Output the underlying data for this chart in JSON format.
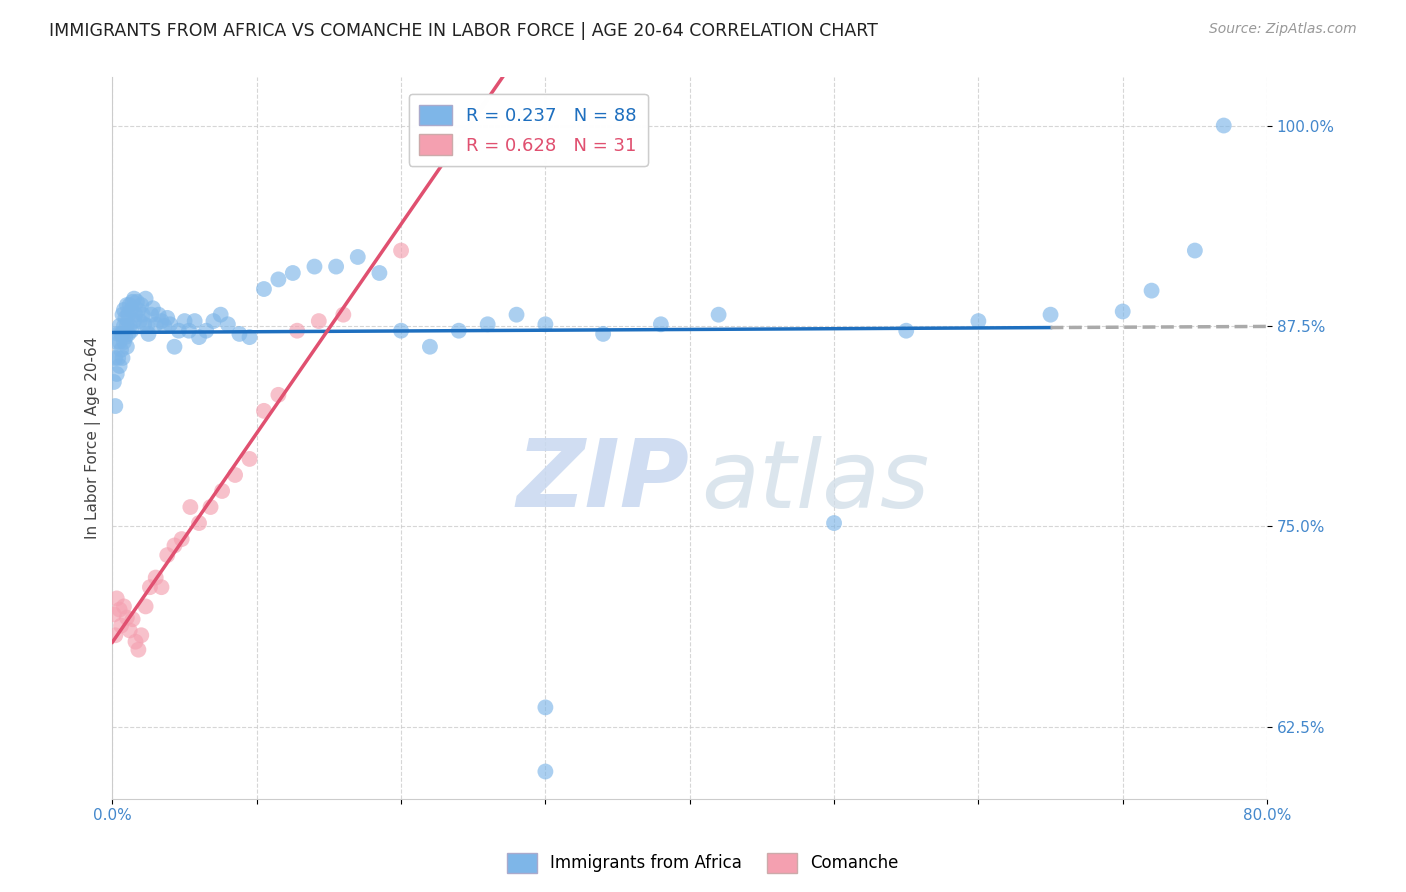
{
  "title": "IMMIGRANTS FROM AFRICA VS COMANCHE IN LABOR FORCE | AGE 20-64 CORRELATION CHART",
  "source": "Source: ZipAtlas.com",
  "ylabel": "In Labor Force | Age 20-64",
  "xlim": [
    0.0,
    0.8
  ],
  "ylim": [
    0.58,
    1.03
  ],
  "yticks": [
    0.625,
    0.75,
    0.875,
    1.0
  ],
  "ytick_labels": [
    "62.5%",
    "75.0%",
    "87.5%",
    "100.0%"
  ],
  "xtick_positions": [
    0.0,
    0.1,
    0.2,
    0.3,
    0.4,
    0.5,
    0.6,
    0.7,
    0.8
  ],
  "xtick_labels": [
    "0.0%",
    "",
    "",
    "",
    "",
    "",
    "",
    "",
    "80.0%"
  ],
  "africa_R": 0.237,
  "africa_N": 88,
  "comanche_R": 0.628,
  "comanche_N": 31,
  "africa_color": "#7EB6E8",
  "comanche_color": "#F4A0B0",
  "africa_line_color": "#1E6FBF",
  "comanche_line_color": "#E05070",
  "dash_color": "#AAAAAA",
  "tick_label_color": "#4488CC",
  "background_color": "#FFFFFF",
  "watermark_zip": "ZIP",
  "watermark_atlas": "atlas",
  "africa_x": [
    0.001,
    0.002,
    0.002,
    0.003,
    0.003,
    0.004,
    0.004,
    0.005,
    0.005,
    0.005,
    0.006,
    0.006,
    0.007,
    0.007,
    0.007,
    0.008,
    0.008,
    0.008,
    0.009,
    0.009,
    0.01,
    0.01,
    0.01,
    0.011,
    0.011,
    0.012,
    0.012,
    0.013,
    0.013,
    0.014,
    0.015,
    0.015,
    0.016,
    0.017,
    0.018,
    0.019,
    0.02,
    0.021,
    0.022,
    0.023,
    0.024,
    0.025,
    0.027,
    0.028,
    0.03,
    0.032,
    0.034,
    0.036,
    0.038,
    0.04,
    0.043,
    0.046,
    0.05,
    0.053,
    0.057,
    0.06,
    0.065,
    0.07,
    0.075,
    0.08,
    0.088,
    0.095,
    0.105,
    0.115,
    0.125,
    0.14,
    0.155,
    0.17,
    0.185,
    0.2,
    0.22,
    0.24,
    0.26,
    0.28,
    0.3,
    0.34,
    0.38,
    0.42,
    0.3,
    0.3,
    0.5,
    0.55,
    0.6,
    0.65,
    0.7,
    0.72,
    0.75,
    0.77
  ],
  "africa_y": [
    0.84,
    0.825,
    0.855,
    0.845,
    0.865,
    0.855,
    0.87,
    0.85,
    0.865,
    0.875,
    0.86,
    0.87,
    0.855,
    0.87,
    0.882,
    0.865,
    0.875,
    0.885,
    0.868,
    0.88,
    0.862,
    0.875,
    0.888,
    0.87,
    0.882,
    0.875,
    0.888,
    0.872,
    0.885,
    0.89,
    0.878,
    0.892,
    0.882,
    0.89,
    0.885,
    0.878,
    0.888,
    0.882,
    0.876,
    0.892,
    0.875,
    0.87,
    0.882,
    0.886,
    0.876,
    0.882,
    0.878,
    0.875,
    0.88,
    0.876,
    0.862,
    0.872,
    0.878,
    0.872,
    0.878,
    0.868,
    0.872,
    0.878,
    0.882,
    0.876,
    0.87,
    0.868,
    0.898,
    0.904,
    0.908,
    0.912,
    0.912,
    0.918,
    0.908,
    0.872,
    0.862,
    0.872,
    0.876,
    0.882,
    0.876,
    0.87,
    0.876,
    0.882,
    0.637,
    0.597,
    0.752,
    0.872,
    0.878,
    0.882,
    0.884,
    0.897,
    0.922,
    1.0
  ],
  "comanche_x": [
    0.001,
    0.002,
    0.003,
    0.005,
    0.006,
    0.008,
    0.01,
    0.012,
    0.014,
    0.016,
    0.018,
    0.02,
    0.023,
    0.026,
    0.03,
    0.034,
    0.038,
    0.043,
    0.048,
    0.054,
    0.06,
    0.068,
    0.076,
    0.085,
    0.095,
    0.105,
    0.115,
    0.128,
    0.143,
    0.16,
    0.2
  ],
  "comanche_y": [
    0.695,
    0.682,
    0.705,
    0.698,
    0.688,
    0.7,
    0.693,
    0.685,
    0.692,
    0.678,
    0.673,
    0.682,
    0.7,
    0.712,
    0.718,
    0.712,
    0.732,
    0.738,
    0.742,
    0.762,
    0.752,
    0.762,
    0.772,
    0.782,
    0.792,
    0.822,
    0.832,
    0.872,
    0.878,
    0.882,
    0.922
  ]
}
